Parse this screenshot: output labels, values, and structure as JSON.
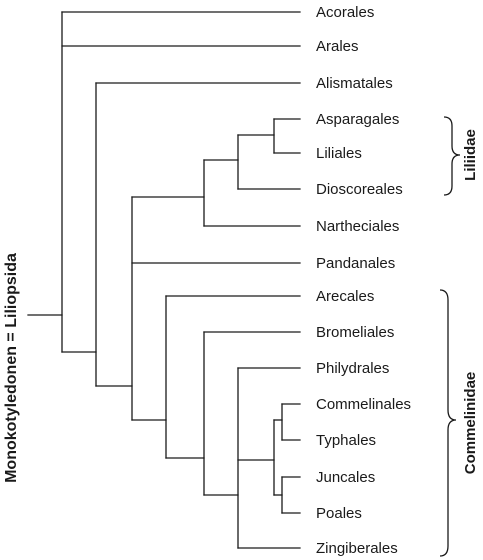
{
  "root_label": "Monokotyledonen = Liliopsida",
  "taxa": [
    "Acorales",
    "Arales",
    "Alismatales",
    "Asparagales",
    "Liliales",
    "Dioscoreales",
    "Nartheciales",
    "Pandanales",
    "Arecales",
    "Bromeliales",
    "Philydrales",
    "Commelinales",
    "Typhales",
    "Juncales",
    "Poales",
    "Zingiberales"
  ],
  "groups": [
    {
      "label": "Liliidae",
      "from": "Asparagales",
      "to": "Dioscoreales"
    },
    {
      "label": "Commelinidae",
      "from": "Arecales",
      "to": "Zingiberales"
    }
  ],
  "tree": [
    "Acorales",
    [
      "Arales",
      [
        "Alismatales",
        [
          [
            [
              [
                [
                  "Asparagales",
                  "Liliales"
                ],
                "Dioscoreales"
              ],
              "Nartheciales"
            ],
            "Pandanales"
          ],
          [
            "Arecales",
            [
              "Bromeliales",
              [
                "Philydrales",
                [
                  [
                    "Commelinales",
                    "Typhales"
                  ],
                  [
                    "Juncales",
                    "Poales"
                  ]
                ],
                "Zingiberales"
              ]
            ]
          ]
        ]
      ]
    ]
  ]
}
